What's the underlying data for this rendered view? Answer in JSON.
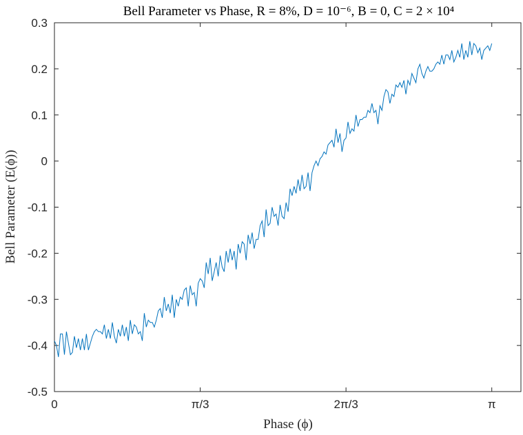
{
  "chart_data": {
    "type": "line",
    "title": "Bell Parameter vs Phase, R = 8%, D = 10⁻⁶, B = 0, C = 2 × 10⁴",
    "xlabel": "Phase (ϕ)",
    "ylabel": "Bell Parameter (E(ϕ))",
    "xlim": [
      0,
      3.351
    ],
    "ylim": [
      -0.5,
      0.3
    ],
    "x_ticks": [
      {
        "value": 0,
        "label": "0"
      },
      {
        "value": 1.0472,
        "label": "π/3"
      },
      {
        "value": 2.0944,
        "label": "2π/3"
      },
      {
        "value": 3.1416,
        "label": "π"
      }
    ],
    "y_ticks": [
      {
        "value": 0.3,
        "label": "0.3"
      },
      {
        "value": 0.2,
        "label": "0.2"
      },
      {
        "value": 0.1,
        "label": "0.1"
      },
      {
        "value": 0,
        "label": "0"
      },
      {
        "value": -0.1,
        "label": "-0.1"
      },
      {
        "value": -0.2,
        "label": "-0.2"
      },
      {
        "value": -0.3,
        "label": "-0.3"
      },
      {
        "value": -0.4,
        "label": "-0.4"
      },
      {
        "value": -0.5,
        "label": "-0.5"
      }
    ],
    "grid": false,
    "series": [
      {
        "color": "#0072BD",
        "x_start": 0,
        "x_end": 3.1416,
        "y": [
          -0.39,
          -0.4,
          -0.425,
          -0.375,
          -0.375,
          -0.42,
          -0.37,
          -0.395,
          -0.42,
          -0.415,
          -0.38,
          -0.405,
          -0.385,
          -0.41,
          -0.385,
          -0.41,
          -0.375,
          -0.41,
          -0.395,
          -0.38,
          -0.37,
          -0.365,
          -0.37,
          -0.37,
          -0.375,
          -0.355,
          -0.385,
          -0.365,
          -0.385,
          -0.35,
          -0.38,
          -0.395,
          -0.365,
          -0.38,
          -0.355,
          -0.38,
          -0.36,
          -0.39,
          -0.345,
          -0.375,
          -0.355,
          -0.36,
          -0.375,
          -0.37,
          -0.39,
          -0.33,
          -0.36,
          -0.345,
          -0.35,
          -0.35,
          -0.36,
          -0.345,
          -0.325,
          -0.32,
          -0.34,
          -0.295,
          -0.325,
          -0.31,
          -0.33,
          -0.29,
          -0.34,
          -0.3,
          -0.315,
          -0.295,
          -0.3,
          -0.28,
          -0.275,
          -0.315,
          -0.27,
          -0.29,
          -0.285,
          -0.315,
          -0.265,
          -0.255,
          -0.26,
          -0.275,
          -0.22,
          -0.245,
          -0.21,
          -0.26,
          -0.24,
          -0.22,
          -0.25,
          -0.205,
          -0.23,
          -0.24,
          -0.195,
          -0.22,
          -0.19,
          -0.215,
          -0.195,
          -0.235,
          -0.18,
          -0.2,
          -0.175,
          -0.18,
          -0.215,
          -0.16,
          -0.18,
          -0.155,
          -0.19,
          -0.17,
          -0.17,
          -0.14,
          -0.13,
          -0.165,
          -0.105,
          -0.14,
          -0.135,
          -0.1,
          -0.12,
          -0.115,
          -0.14,
          -0.095,
          -0.12,
          -0.125,
          -0.09,
          -0.11,
          -0.06,
          -0.075,
          -0.055,
          -0.07,
          -0.04,
          -0.065,
          -0.03,
          -0.06,
          -0.055,
          -0.025,
          -0.065,
          -0.025,
          -0.01,
          0.0,
          -0.01,
          0.005,
          0.01,
          0.02,
          0.015,
          0.035,
          0.04,
          0.045,
          0.03,
          0.07,
          0.04,
          0.06,
          0.02,
          0.045,
          0.05,
          0.085,
          0.06,
          0.07,
          0.065,
          0.1,
          0.075,
          0.09,
          0.09,
          0.095,
          0.095,
          0.11,
          0.105,
          0.125,
          0.105,
          0.11,
          0.08,
          0.12,
          0.11,
          0.14,
          0.155,
          0.15,
          0.125,
          0.145,
          0.14,
          0.165,
          0.16,
          0.17,
          0.16,
          0.175,
          0.145,
          0.175,
          0.165,
          0.19,
          0.18,
          0.17,
          0.2,
          0.21,
          0.19,
          0.18,
          0.195,
          0.205,
          0.195,
          0.195,
          0.2,
          0.21,
          0.215,
          0.21,
          0.23,
          0.21,
          0.23,
          0.23,
          0.22,
          0.24,
          0.215,
          0.225,
          0.24,
          0.225,
          0.255,
          0.22,
          0.24,
          0.225,
          0.26,
          0.23,
          0.255,
          0.25,
          0.235,
          0.245,
          0.22,
          0.24,
          0.245,
          0.25,
          0.24,
          0.255
        ]
      }
    ]
  }
}
